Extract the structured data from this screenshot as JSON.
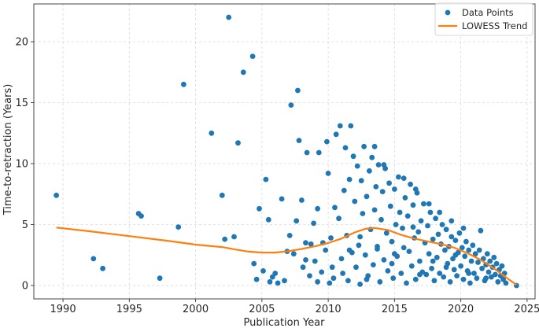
{
  "chart_data": {
    "type": "scatter",
    "xlabel": "Publication Year",
    "ylabel": "Time-to-retraction (Years)",
    "xlim": [
      1987.8,
      2025.6
    ],
    "ylim": [
      -1.1,
      23.1
    ],
    "xticks": [
      1990,
      1995,
      2000,
      2005,
      2010,
      2015,
      2020,
      2025
    ],
    "yticks": [
      0,
      5,
      10,
      15,
      20
    ],
    "grid": true,
    "legend_position": "top-right",
    "colors": {
      "points": "#1f77b4",
      "trend": "#ff7f0e"
    },
    "series": [
      {
        "name": "Data Points",
        "kind": "scatter",
        "points": [
          [
            1989.5,
            7.4
          ],
          [
            1992.3,
            2.2
          ],
          [
            1993.0,
            1.4
          ],
          [
            1995.7,
            5.9
          ],
          [
            1995.9,
            5.7
          ],
          [
            1997.3,
            0.6
          ],
          [
            1998.7,
            4.8
          ],
          [
            1999.1,
            16.5
          ],
          [
            2001.2,
            12.5
          ],
          [
            2002.0,
            7.4
          ],
          [
            2002.2,
            3.8
          ],
          [
            2002.5,
            22.0
          ],
          [
            2002.9,
            4.0
          ],
          [
            2003.2,
            11.7
          ],
          [
            2003.6,
            17.5
          ],
          [
            2004.3,
            18.8
          ],
          [
            2004.4,
            1.8
          ],
          [
            2004.6,
            0.5
          ],
          [
            2004.8,
            6.3
          ],
          [
            2005.1,
            1.2
          ],
          [
            2005.3,
            8.7
          ],
          [
            2005.5,
            5.4
          ],
          [
            2005.6,
            0.3
          ],
          [
            2005.8,
            0.7
          ],
          [
            2006.0,
            1.0
          ],
          [
            2006.2,
            0.2
          ],
          [
            2006.5,
            7.1
          ],
          [
            2006.7,
            0.4
          ],
          [
            2006.9,
            2.8
          ],
          [
            2007.1,
            4.1
          ],
          [
            2007.2,
            14.8
          ],
          [
            2007.4,
            2.6
          ],
          [
            2007.6,
            5.3
          ],
          [
            2007.7,
            16.0
          ],
          [
            2007.8,
            11.9
          ],
          [
            2008.0,
            7.0
          ],
          [
            2008.1,
            1.5
          ],
          [
            2008.3,
            3.5
          ],
          [
            2008.4,
            10.9
          ],
          [
            2008.6,
            0.8
          ],
          [
            2008.7,
            3.4
          ],
          [
            2008.9,
            5.1
          ],
          [
            2009.0,
            2.0
          ],
          [
            2009.2,
            6.3
          ],
          [
            2009.3,
            10.9
          ],
          [
            2009.5,
            1.1
          ],
          [
            2009.6,
            3.5
          ],
          [
            2009.8,
            2.9
          ],
          [
            2009.9,
            11.8
          ],
          [
            2010.0,
            9.2
          ],
          [
            2010.1,
            0.2
          ],
          [
            2010.2,
            3.9
          ],
          [
            2010.4,
            0.6
          ],
          [
            2010.5,
            6.4
          ],
          [
            2010.6,
            12.4
          ],
          [
            2010.8,
            5.5
          ],
          [
            2010.9,
            13.1
          ],
          [
            2011.0,
            2.2
          ],
          [
            2011.1,
            1.0
          ],
          [
            2011.2,
            7.8
          ],
          [
            2011.3,
            11.3
          ],
          [
            2011.4,
            4.1
          ],
          [
            2011.5,
            0.4
          ],
          [
            2011.6,
            8.7
          ],
          [
            2011.7,
            13.1
          ],
          [
            2011.8,
            2.7
          ],
          [
            2011.9,
            10.6
          ],
          [
            2012.0,
            6.9
          ],
          [
            2012.1,
            1.5
          ],
          [
            2012.2,
            9.8
          ],
          [
            2012.3,
            3.3
          ],
          [
            2012.4,
            0.1
          ],
          [
            2012.5,
            8.6
          ],
          [
            2012.6,
            5.9
          ],
          [
            2012.7,
            11.4
          ],
          [
            2012.8,
            2.5
          ],
          [
            2012.9,
            7.3
          ],
          [
            2013.0,
            0.8
          ],
          [
            2013.1,
            9.4
          ],
          [
            2013.2,
            4.6
          ],
          [
            2013.3,
            10.5
          ],
          [
            2013.4,
            1.7
          ],
          [
            2013.5,
            6.2
          ],
          [
            2013.6,
            8.1
          ],
          [
            2013.7,
            3.0
          ],
          [
            2013.8,
            9.9
          ],
          [
            2013.9,
            0.3
          ],
          [
            2014.0,
            5.4
          ],
          [
            2014.1,
            7.7
          ],
          [
            2014.2,
            2.1
          ],
          [
            2014.3,
            9.6
          ],
          [
            2014.4,
            4.3
          ],
          [
            2014.5,
            1.2
          ],
          [
            2014.6,
            8.4
          ],
          [
            2014.7,
            6.5
          ],
          [
            2014.8,
            3.6
          ],
          [
            2014.9,
            0.6
          ],
          [
            2015.0,
            7.9
          ],
          [
            2015.1,
            5.0
          ],
          [
            2015.2,
            2.4
          ],
          [
            2015.3,
            8.9
          ],
          [
            2015.4,
            6.0
          ],
          [
            2015.5,
            1.0
          ],
          [
            2015.6,
            4.7
          ],
          [
            2015.7,
            3.1
          ],
          [
            2015.8,
            7.2
          ],
          [
            2015.9,
            0.2
          ],
          [
            2016.0,
            5.7
          ],
          [
            2016.1,
            2.8
          ],
          [
            2016.2,
            8.3
          ],
          [
            2016.3,
            1.6
          ],
          [
            2016.4,
            6.6
          ],
          [
            2016.5,
            3.9
          ],
          [
            2016.6,
            0.5
          ],
          [
            2016.7,
            7.6
          ],
          [
            2016.8,
            4.4
          ],
          [
            2016.9,
            2.0
          ],
          [
            2017.0,
            5.3
          ],
          [
            2017.1,
            1.1
          ],
          [
            2017.2,
            6.7
          ],
          [
            2017.3,
            3.5
          ],
          [
            2017.4,
            0.9
          ],
          [
            2017.5,
            4.9
          ],
          [
            2017.6,
            2.6
          ],
          [
            2017.7,
            6.0
          ],
          [
            2017.8,
            1.4
          ],
          [
            2017.9,
            3.8
          ],
          [
            2018.0,
            0.4
          ],
          [
            2018.1,
            5.5
          ],
          [
            2018.2,
            2.3
          ],
          [
            2018.3,
            4.2
          ],
          [
            2018.4,
            1.0
          ],
          [
            2018.5,
            3.4
          ],
          [
            2018.6,
            5.0
          ],
          [
            2018.7,
            0.7
          ],
          [
            2018.8,
            2.9
          ],
          [
            2018.9,
            4.6
          ],
          [
            2019.0,
            1.8
          ],
          [
            2019.1,
            3.2
          ],
          [
            2019.2,
            0.3
          ],
          [
            2019.3,
            4.0
          ],
          [
            2019.4,
            2.2
          ],
          [
            2019.5,
            1.3
          ],
          [
            2019.6,
            3.7
          ],
          [
            2019.7,
            0.8
          ],
          [
            2019.8,
            2.7
          ],
          [
            2019.9,
            4.3
          ],
          [
            2020.0,
            1.6
          ],
          [
            2020.1,
            3.1
          ],
          [
            2020.2,
            0.5
          ],
          [
            2020.3,
            2.4
          ],
          [
            2020.4,
            3.6
          ],
          [
            2020.5,
            1.2
          ],
          [
            2020.6,
            2.9
          ],
          [
            2020.7,
            0.2
          ],
          [
            2020.8,
            2.0
          ],
          [
            2020.9,
            3.3
          ],
          [
            2021.0,
            1.0
          ],
          [
            2021.1,
            2.6
          ],
          [
            2021.2,
            0.6
          ],
          [
            2021.3,
            1.9
          ],
          [
            2021.4,
            2.9
          ],
          [
            2021.5,
            4.5
          ],
          [
            2021.6,
            1.4
          ],
          [
            2021.7,
            2.2
          ],
          [
            2021.8,
            0.4
          ],
          [
            2021.9,
            1.7
          ],
          [
            2022.0,
            2.6
          ],
          [
            2022.1,
            1.1
          ],
          [
            2022.2,
            2.0
          ],
          [
            2022.3,
            0.7
          ],
          [
            2022.4,
            1.5
          ],
          [
            2022.5,
            2.3
          ],
          [
            2022.6,
            0.9
          ],
          [
            2022.7,
            1.8
          ],
          [
            2022.8,
            0.3
          ],
          [
            2022.9,
            1.3
          ],
          [
            2023.0,
            0.8
          ],
          [
            2023.1,
            1.6
          ],
          [
            2023.2,
            0.5
          ],
          [
            2023.3,
            1.0
          ],
          [
            2023.4,
            0.2
          ],
          [
            2024.2,
            0.0
          ],
          [
            2013.5,
            11.4
          ],
          [
            2014.2,
            9.9
          ],
          [
            2015.7,
            8.8
          ],
          [
            2016.6,
            7.9
          ],
          [
            2017.6,
            6.7
          ],
          [
            2018.4,
            6.0
          ],
          [
            2019.3,
            5.3
          ],
          [
            2020.2,
            4.7
          ],
          [
            2012.4,
            4.0
          ],
          [
            2013.7,
            3.2
          ],
          [
            2015.0,
            2.6
          ],
          [
            2016.4,
            4.8
          ],
          [
            2017.9,
            2.0
          ],
          [
            2019.6,
            2.5
          ],
          [
            2010.3,
            1.5
          ],
          [
            2011.6,
            2.9
          ],
          [
            2012.9,
            0.5
          ],
          [
            2014.8,
            1.8
          ],
          [
            2016.9,
            0.9
          ],
          [
            2018.9,
            1.5
          ],
          [
            2020.6,
            1.0
          ],
          [
            2021.9,
            0.6
          ],
          [
            2009.2,
            0.3
          ],
          [
            2008.3,
            2.1
          ]
        ]
      },
      {
        "name": "LOWESS Trend",
        "kind": "line",
        "points": [
          [
            1989.5,
            4.75
          ],
          [
            1992.0,
            4.45
          ],
          [
            1995.0,
            4.05
          ],
          [
            1998.0,
            3.65
          ],
          [
            2000.0,
            3.35
          ],
          [
            2002.0,
            3.15
          ],
          [
            2003.0,
            2.95
          ],
          [
            2004.0,
            2.78
          ],
          [
            2005.0,
            2.7
          ],
          [
            2006.0,
            2.7
          ],
          [
            2007.0,
            2.82
          ],
          [
            2008.0,
            3.0
          ],
          [
            2009.0,
            3.22
          ],
          [
            2010.0,
            3.48
          ],
          [
            2011.0,
            3.85
          ],
          [
            2012.0,
            4.35
          ],
          [
            2012.8,
            4.65
          ],
          [
            2013.5,
            4.72
          ],
          [
            2014.5,
            4.55
          ],
          [
            2015.5,
            4.15
          ],
          [
            2016.5,
            3.85
          ],
          [
            2017.5,
            3.62
          ],
          [
            2018.5,
            3.4
          ],
          [
            2019.5,
            3.1
          ],
          [
            2020.5,
            2.65
          ],
          [
            2021.5,
            2.1
          ],
          [
            2022.5,
            1.4
          ],
          [
            2023.5,
            0.6
          ],
          [
            2024.2,
            0.05
          ]
        ]
      }
    ]
  }
}
